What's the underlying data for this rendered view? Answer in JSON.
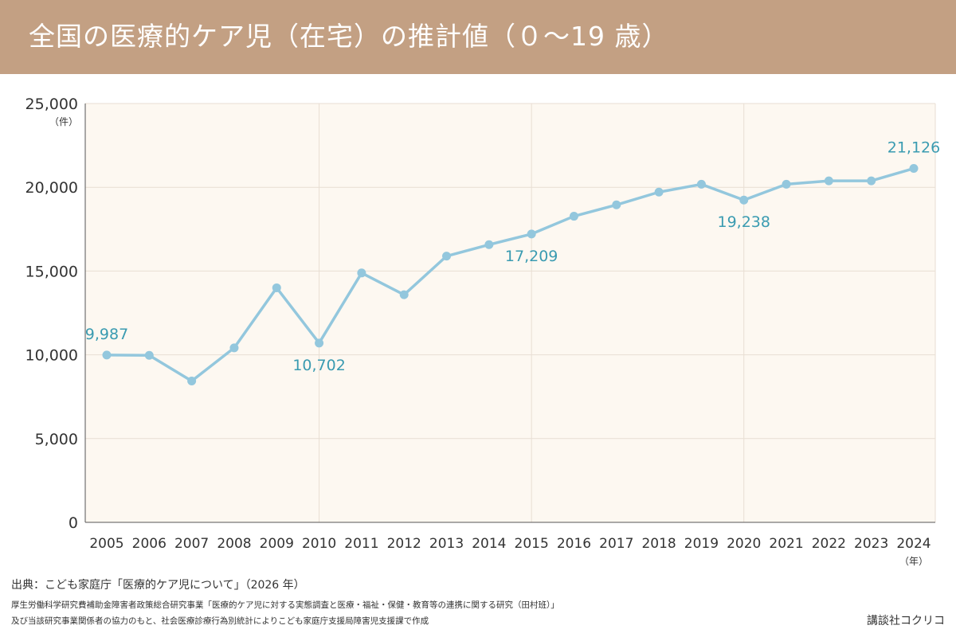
{
  "title": "全国の医療的ケア児（在宅）の推計値（０～19 歳）",
  "colors": {
    "banner": "#c3a083",
    "plot_background": "#fdf8f1",
    "line": "#93c7dd",
    "data_label": "#3a9bb1",
    "grid": "#e8ded3"
  },
  "chart_data": {
    "type": "line",
    "title": "全国の医療的ケア児（在宅）の推計値（０～19 歳）",
    "xlabel": "",
    "ylabel": "",
    "y_unit": "（件）",
    "x_unit": "（年）",
    "x": [
      2005,
      2006,
      2007,
      2008,
      2009,
      2010,
      2011,
      2012,
      2013,
      2014,
      2015,
      2016,
      2017,
      2018,
      2019,
      2020,
      2021,
      2022,
      2023,
      2024
    ],
    "x_tick_labels": [
      "2005",
      "2006",
      "2007",
      "2008",
      "2009",
      "2010",
      "2011",
      "2012",
      "2013",
      "2014",
      "2015",
      "2016",
      "2017",
      "2018",
      "2019",
      "2020",
      "2021",
      "2022",
      "2023",
      "2024"
    ],
    "series": [
      {
        "values": [
          9987,
          9967,
          8438,
          10413,
          14000,
          10702,
          14886,
          13585,
          15892,
          16575,
          17209,
          18272,
          18951,
          19712,
          20180,
          19238,
          20180,
          20385,
          20385,
          21126
        ]
      }
    ],
    "ylim": [
      0,
      25000
    ],
    "y_ticks": [
      0,
      5000,
      10000,
      15000,
      20000,
      25000
    ],
    "y_tick_labels": [
      "0",
      "5,000",
      "10,000",
      "15,000",
      "20,000",
      "25,000"
    ],
    "vertical_gridlines_at": [
      2010,
      2015,
      2020
    ],
    "grid": true,
    "legend": "none",
    "annotations": [
      {
        "x": 2005,
        "y": 9987,
        "text": "9,987",
        "position": "above"
      },
      {
        "x": 2010,
        "y": 10702,
        "text": "10,702",
        "position": "below"
      },
      {
        "x": 2015,
        "y": 17209,
        "text": "17,209",
        "position": "below"
      },
      {
        "x": 2020,
        "y": 19238,
        "text": "19,238",
        "position": "below"
      },
      {
        "x": 2024,
        "y": 21126,
        "text": "21,126",
        "position": "above"
      }
    ]
  },
  "source": {
    "line1": "出典：こども家庭庁「医療的ケア児について」（2026 年）",
    "line2": "厚生労働科学研究費補助金障害者政策総合研究事業「医療的ケア児に対する実態調査と医療・福祉・保健・教育等の連携に関する研究（田村班）」",
    "line3": "及び当該研究事業関係者の協力のもと、社会医療診療行為別統計によりこども家庭庁支援局障害児支援課で作成"
  },
  "publisher": "講談社コクリコ"
}
